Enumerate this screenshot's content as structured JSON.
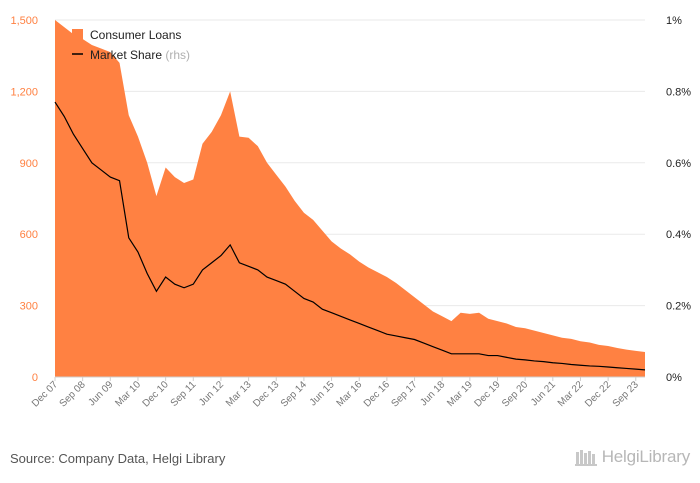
{
  "chart_data": {
    "type": "area",
    "title": "",
    "x_labels": [
      "Dec 07",
      "Sep 08",
      "Jun 09",
      "Mar 10",
      "Dec 10",
      "Sep 11",
      "Jun 12",
      "Mar 13",
      "Dec 13",
      "Sep 14",
      "Jun 15",
      "Mar 16",
      "Dec 16",
      "Sep 17",
      "Jun 18",
      "Mar 19",
      "Dec 19",
      "Sep 20",
      "Jun 21",
      "Mar 22",
      "Dec 22",
      "Sep 23"
    ],
    "y_left": {
      "ticks": [
        "0",
        "300",
        "600",
        "900",
        "1,200",
        "1,500"
      ],
      "range": [
        0,
        1500
      ]
    },
    "y_right": {
      "ticks": [
        "0%",
        "0.2%",
        "0.4%",
        "0.6%",
        "0.8%",
        "1%"
      ],
      "range": [
        0,
        1
      ]
    },
    "legend_position": "top-left",
    "series": [
      {
        "name": "Consumer Loans",
        "type": "area",
        "axis": "left",
        "color": "#ff8142",
        "values": [
          1500,
          1470,
          1440,
          1420,
          1395,
          1380,
          1365,
          1320,
          1100,
          1010,
          900,
          760,
          880,
          840,
          815,
          830,
          980,
          1030,
          1100,
          1200,
          1010,
          1005,
          970,
          900,
          850,
          800,
          740,
          690,
          660,
          615,
          570,
          540,
          515,
          485,
          460,
          440,
          420,
          395,
          365,
          335,
          305,
          275,
          255,
          235,
          270,
          265,
          270,
          245,
          235,
          225,
          210,
          205,
          195,
          185,
          175,
          165,
          160,
          150,
          145,
          135,
          130,
          122,
          115,
          110,
          105
        ]
      },
      {
        "name": "Market Share",
        "type": "line",
        "axis": "right",
        "label_suffix": "(rhs)",
        "color": "#000000",
        "values": [
          0.77,
          0.73,
          0.68,
          0.64,
          0.6,
          0.58,
          0.56,
          0.55,
          0.39,
          0.35,
          0.29,
          0.24,
          0.28,
          0.26,
          0.25,
          0.26,
          0.3,
          0.32,
          0.34,
          0.37,
          0.32,
          0.31,
          0.3,
          0.28,
          0.27,
          0.26,
          0.24,
          0.22,
          0.21,
          0.19,
          0.18,
          0.17,
          0.16,
          0.15,
          0.14,
          0.13,
          0.12,
          0.115,
          0.11,
          0.105,
          0.095,
          0.085,
          0.075,
          0.065,
          0.065,
          0.065,
          0.065,
          0.06,
          0.06,
          0.055,
          0.05,
          0.048,
          0.045,
          0.043,
          0.04,
          0.038,
          0.035,
          0.033,
          0.031,
          0.03,
          0.028,
          0.026,
          0.024,
          0.022,
          0.02
        ]
      }
    ]
  },
  "footer": {
    "source": "Source: Company Data, Helgi Library",
    "brand": "HelgiLibrary"
  },
  "colors": {
    "left_axis_text": "#ff8142",
    "grid": "#eaeaea",
    "axis_text": "#777777",
    "brand": "#b7b7b7"
  }
}
